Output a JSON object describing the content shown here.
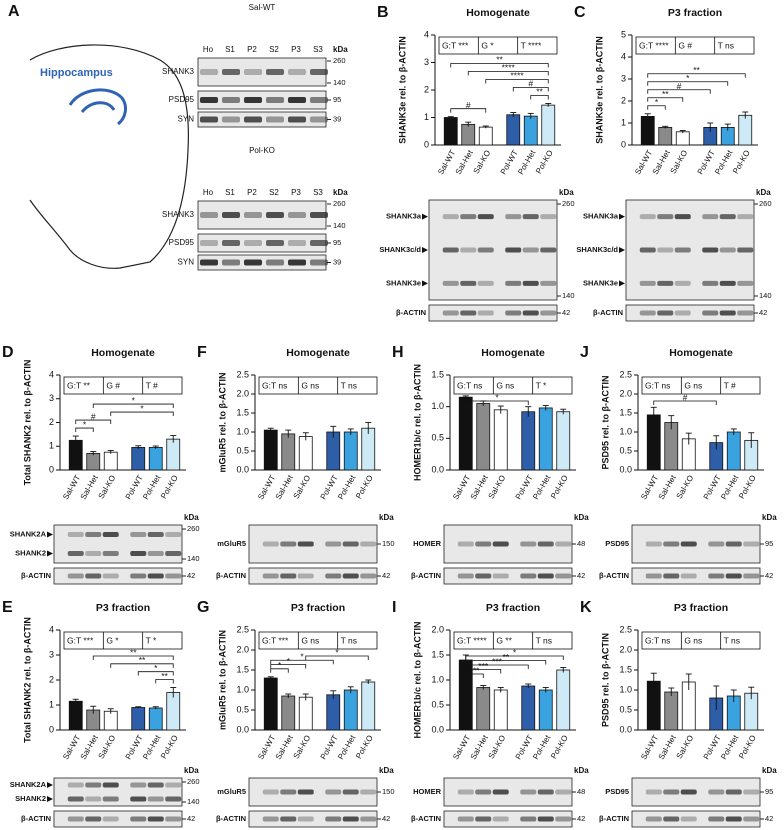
{
  "panel_a": {
    "label": "A",
    "region": "Hippocampus",
    "blots": [
      {
        "group": "Sal-WT",
        "lanes": [
          "Ho",
          "S1",
          "P2",
          "S2",
          "P3",
          "S3"
        ],
        "unit": "kDa",
        "rows": [
          {
            "label": "SHANK3",
            "markers": [
              260,
              140
            ]
          },
          {
            "label": "PSD95",
            "markers": [
              95
            ]
          },
          {
            "label": "SYN",
            "markers": [
              39
            ]
          }
        ]
      },
      {
        "group": "Pol-KO",
        "lanes": [
          "Ho",
          "S1",
          "P2",
          "S2",
          "P3",
          "S3"
        ],
        "unit": "kDa",
        "rows": [
          {
            "label": "SHANK3",
            "markers": [
              260,
              140
            ]
          },
          {
            "label": "PSD95",
            "markers": [
              95
            ]
          },
          {
            "label": "SYN",
            "markers": [
              39
            ]
          }
        ]
      }
    ]
  },
  "chart_data": [
    {
      "type": "bar",
      "panel": "B",
      "title": "Homogenate",
      "y_label": "SHANK3e rel. to β-ACTIN",
      "categories": [
        "Sal-WT",
        "Sal-Het",
        "Sal-KO",
        "Pol-WT",
        "Pol-Het",
        "Pol-KO"
      ],
      "values": [
        1.0,
        0.75,
        0.65,
        1.1,
        1.05,
        1.45
      ],
      "errors": [
        0.03,
        0.08,
        0.04,
        0.08,
        0.1,
        0.06
      ],
      "colors": [
        "#111111",
        "#8a8a8a",
        "#ffffff",
        "#2e5ea8",
        "#3aa3df",
        "#cdeaf6"
      ],
      "ylim": [
        0,
        4
      ],
      "yticks": [
        0,
        1,
        2,
        3,
        4
      ],
      "stats": [
        "G:T ***",
        "G *",
        "T ****"
      ],
      "comparisons": [
        {
          "pair": [
            "Sal-WT",
            "Pol-KO"
          ],
          "label": "**"
        },
        {
          "pair": [
            "Sal-Het",
            "Pol-KO"
          ],
          "label": "****"
        },
        {
          "pair": [
            "Sal-KO",
            "Pol-KO"
          ],
          "label": "****"
        },
        {
          "pair": [
            "Pol-WT",
            "Pol-KO"
          ],
          "label": "#"
        },
        {
          "pair": [
            "Pol-Het",
            "Pol-KO"
          ],
          "label": "**"
        },
        {
          "pair": [
            "Sal-WT",
            "Sal-KO"
          ],
          "label": "#"
        }
      ],
      "blot": {
        "unit": "kDa",
        "rows": [
          {
            "labels": [
              "SHANK3a",
              "SHANK3c/d",
              "SHANK3e"
            ],
            "markers": [
              260,
              140
            ]
          },
          {
            "labels": [
              "β-ACTIN"
            ],
            "markers": [
              42
            ]
          }
        ]
      }
    },
    {
      "type": "bar",
      "panel": "C",
      "title": "P3 fraction",
      "y_label": "SHANK3e rel. to β-ACTIN",
      "categories": [
        "Sal-WT",
        "Sal-Het",
        "Sal-KO",
        "Pol-WT",
        "Pol-Het",
        "Pol-KO"
      ],
      "values": [
        1.3,
        0.8,
        0.6,
        0.8,
        0.8,
        1.35
      ],
      "errors": [
        0.12,
        0.05,
        0.06,
        0.2,
        0.15,
        0.15
      ],
      "colors": [
        "#111111",
        "#8a8a8a",
        "#ffffff",
        "#2e5ea8",
        "#3aa3df",
        "#cdeaf6"
      ],
      "ylim": [
        0,
        5
      ],
      "yticks": [
        0,
        1,
        2,
        3,
        4,
        5
      ],
      "stats": [
        "G:T ****",
        "G #",
        "T ns"
      ],
      "comparisons": [
        {
          "pair": [
            "Sal-WT",
            "Pol-KO"
          ],
          "label": "**"
        },
        {
          "pair": [
            "Sal-WT",
            "Pol-Het"
          ],
          "label": "*"
        },
        {
          "pair": [
            "Sal-WT",
            "Pol-WT"
          ],
          "label": "#"
        },
        {
          "pair": [
            "Sal-WT",
            "Sal-KO"
          ],
          "label": "**"
        },
        {
          "pair": [
            "Sal-WT",
            "Sal-Het"
          ],
          "label": "*"
        }
      ],
      "blot": {
        "unit": "kDa",
        "rows": [
          {
            "labels": [
              "SHANK3a",
              "SHANK3c/d",
              "SHANK3e"
            ],
            "markers": [
              260,
              140
            ]
          },
          {
            "labels": [
              "β-ACTIN"
            ],
            "markers": [
              42
            ]
          }
        ]
      }
    },
    {
      "type": "bar",
      "panel": "D",
      "title": "Homogenate",
      "y_label": "Total SHANK2 rel. to β-ACTIN",
      "categories": [
        "Sal-WT",
        "Sal-Het",
        "Sal-KO",
        "Pol-WT",
        "Pol-Het",
        "Pol-KO"
      ],
      "values": [
        1.25,
        0.7,
        0.75,
        0.95,
        0.95,
        1.3
      ],
      "errors": [
        0.18,
        0.08,
        0.07,
        0.07,
        0.06,
        0.15
      ],
      "colors": [
        "#111111",
        "#8a8a8a",
        "#ffffff",
        "#2e5ea8",
        "#3aa3df",
        "#cdeaf6"
      ],
      "ylim": [
        0,
        4
      ],
      "yticks": [
        0,
        1,
        2,
        3,
        4
      ],
      "stats": [
        "G:T **",
        "G #",
        "T #"
      ],
      "comparisons": [
        {
          "pair": [
            "Sal-Het",
            "Pol-KO"
          ],
          "label": "*"
        },
        {
          "pair": [
            "Sal-KO",
            "Pol-KO"
          ],
          "label": "*"
        },
        {
          "pair": [
            "Sal-WT",
            "Sal-KO"
          ],
          "label": "#"
        },
        {
          "pair": [
            "Sal-WT",
            "Sal-Het"
          ],
          "label": "*"
        }
      ],
      "blot": {
        "unit": "kDa",
        "rows": [
          {
            "labels": [
              "SHANK2A",
              "SHANK2"
            ],
            "markers": [
              260,
              140
            ]
          },
          {
            "labels": [
              "β-ACTIN"
            ],
            "markers": [
              42
            ]
          }
        ]
      }
    },
    {
      "type": "bar",
      "panel": "F",
      "title": "Homogenate",
      "y_label": "mGluR5 rel. to β-ACTIN",
      "categories": [
        "Sal-WT",
        "Sal-Het",
        "Sal-KO",
        "Pol-WT",
        "Pol-Het",
        "Pol-KO"
      ],
      "values": [
        1.05,
        0.95,
        0.88,
        1.0,
        1.0,
        1.1
      ],
      "errors": [
        0.05,
        0.1,
        0.1,
        0.15,
        0.08,
        0.15
      ],
      "colors": [
        "#111111",
        "#8a8a8a",
        "#ffffff",
        "#2e5ea8",
        "#3aa3df",
        "#cdeaf6"
      ],
      "ylim": [
        0,
        2.5
      ],
      "yticks": [
        {
          "value": 0,
          "label": "0.0"
        },
        0.5,
        {
          "value": 1,
          "label": "1.0"
        },
        1.5,
        {
          "value": 2,
          "label": "2.0"
        },
        2.5
      ],
      "stats": [
        "G:T ns",
        "G ns",
        "T ns"
      ],
      "comparisons": [],
      "blot": {
        "unit": "kDa",
        "rows": [
          {
            "labels": [
              "mGluR5"
            ],
            "markers": [
              150
            ]
          },
          {
            "labels": [
              "β-ACTIN"
            ],
            "markers": [
              42
            ]
          }
        ]
      }
    },
    {
      "type": "bar",
      "panel": "H",
      "title": "Homogenate",
      "y_label": "HOMER1b/c rel. to β-ACTIN",
      "categories": [
        "Sal-WT",
        "Sal-Het",
        "Sal-KO",
        "Pol-WT",
        "Pol-Het",
        "Pol-KO"
      ],
      "values": [
        1.15,
        1.05,
        0.95,
        0.92,
        0.98,
        0.92
      ],
      "errors": [
        0.02,
        0.04,
        0.06,
        0.08,
        0.04,
        0.04
      ],
      "colors": [
        "#111111",
        "#8a8a8a",
        "#ffffff",
        "#2e5ea8",
        "#3aa3df",
        "#cdeaf6"
      ],
      "ylim": [
        0,
        1.5
      ],
      "yticks": [
        {
          "value": 0,
          "label": "0.0"
        },
        0.5,
        {
          "value": 1,
          "label": "1.0"
        },
        1.5
      ],
      "stats": [
        "G:T ns",
        "G ns",
        "T *"
      ],
      "comparisons": [
        {
          "pair": [
            "Sal-WT",
            "Pol-WT"
          ],
          "label": "*"
        }
      ],
      "blot": {
        "unit": "kDa",
        "rows": [
          {
            "labels": [
              "HOMER"
            ],
            "markers": [
              48
            ]
          },
          {
            "labels": [
              "β-ACTIN"
            ],
            "markers": [
              42
            ]
          }
        ]
      }
    },
    {
      "type": "bar",
      "panel": "J",
      "title": "Homogenate",
      "y_label": "PSD95 rel. to β-ACTIN",
      "categories": [
        "Sal-WT",
        "Sal-Het",
        "Sal-KO",
        "Pol-WT",
        "Pol-Het",
        "Pol-KO"
      ],
      "values": [
        1.45,
        1.25,
        0.82,
        0.72,
        1.0,
        0.78
      ],
      "errors": [
        0.2,
        0.18,
        0.15,
        0.18,
        0.08,
        0.2
      ],
      "colors": [
        "#111111",
        "#8a8a8a",
        "#ffffff",
        "#2e5ea8",
        "#3aa3df",
        "#cdeaf6"
      ],
      "ylim": [
        0,
        2.5
      ],
      "yticks": [
        {
          "value": 0,
          "label": "0.0"
        },
        0.5,
        {
          "value": 1,
          "label": "1.0"
        },
        1.5,
        {
          "value": 2,
          "label": "2.0"
        },
        2.5
      ],
      "stats": [
        "G:T ns",
        "G ns",
        "T #"
      ],
      "comparisons": [
        {
          "pair": [
            "Sal-WT",
            "Pol-WT"
          ],
          "label": "#"
        }
      ],
      "blot": {
        "unit": "kDa",
        "rows": [
          {
            "labels": [
              "PSD95"
            ],
            "markers": [
              95
            ]
          },
          {
            "labels": [
              "β-ACTIN"
            ],
            "markers": [
              42
            ]
          }
        ]
      }
    },
    {
      "type": "bar",
      "panel": "E",
      "title": "P3 fraction",
      "y_label": "Total SHANK2 rel. to β-ACTIN",
      "categories": [
        "Sal-WT",
        "Sal-Het",
        "Sal-KO",
        "Pol-WT",
        "Pol-Het",
        "Pol-KO"
      ],
      "values": [
        1.15,
        0.8,
        0.75,
        0.9,
        0.88,
        1.5
      ],
      "errors": [
        0.08,
        0.15,
        0.1,
        0.03,
        0.05,
        0.2
      ],
      "colors": [
        "#111111",
        "#8a8a8a",
        "#ffffff",
        "#2e5ea8",
        "#3aa3df",
        "#cdeaf6"
      ],
      "ylim": [
        0,
        4
      ],
      "yticks": [
        0,
        1,
        2,
        3,
        4
      ],
      "stats": [
        "G:T ***",
        "G *",
        "T *"
      ],
      "comparisons": [
        {
          "pair": [
            "Sal-Het",
            "Pol-KO"
          ],
          "label": "**"
        },
        {
          "pair": [
            "Sal-KO",
            "Pol-KO"
          ],
          "label": "**"
        },
        {
          "pair": [
            "Pol-WT",
            "Pol-KO"
          ],
          "label": "*"
        },
        {
          "pair": [
            "Pol-Het",
            "Pol-KO"
          ],
          "label": "**"
        }
      ],
      "blot": {
        "unit": "kDa",
        "rows": [
          {
            "labels": [
              "SHANK2A",
              "SHANK2"
            ],
            "markers": [
              260,
              140
            ]
          },
          {
            "labels": [
              "β-ACTIN"
            ],
            "markers": [
              42
            ]
          }
        ]
      }
    },
    {
      "type": "bar",
      "panel": "G",
      "title": "P3 fraction",
      "y_label": "mGluR5 rel. to β-ACTIN",
      "categories": [
        "Sal-WT",
        "Sal-Het",
        "Sal-KO",
        "Pol-WT",
        "Pol-Het",
        "Pol-KO"
      ],
      "values": [
        1.3,
        0.85,
        0.82,
        0.88,
        1.0,
        1.2
      ],
      "errors": [
        0.03,
        0.05,
        0.08,
        0.1,
        0.08,
        0.05
      ],
      "colors": [
        "#111111",
        "#8a8a8a",
        "#ffffff",
        "#2e5ea8",
        "#3aa3df",
        "#cdeaf6"
      ],
      "ylim": [
        0,
        2.5
      ],
      "yticks": [
        {
          "value": 0,
          "label": "0.0"
        },
        0.5,
        {
          "value": 1,
          "label": "1.0"
        },
        1.5,
        {
          "value": 2,
          "label": "2.0"
        },
        2.5
      ],
      "stats": [
        "G:T ***",
        "G ns",
        "T ns"
      ],
      "comparisons": [
        {
          "pair": [
            "Sal-KO",
            "Pol-KO"
          ],
          "label": "*"
        },
        {
          "pair": [
            "Sal-WT",
            "Pol-WT"
          ],
          "label": "*"
        },
        {
          "pair": [
            "Sal-WT",
            "Sal-KO"
          ],
          "label": "*"
        },
        {
          "pair": [
            "Sal-WT",
            "Sal-Het"
          ],
          "label": "*"
        }
      ],
      "blot": {
        "unit": "kDa",
        "rows": [
          {
            "labels": [
              "mGluR5"
            ],
            "markers": [
              150
            ]
          },
          {
            "labels": [
              "β-ACTIN"
            ],
            "markers": [
              42
            ]
          }
        ]
      }
    },
    {
      "type": "bar",
      "panel": "I",
      "title": "P3 fraction",
      "y_label": "HOMER1b/c rel. to β-ACTIN",
      "categories": [
        "Sal-WT",
        "Sal-Het",
        "Sal-KO",
        "Pol-WT",
        "Pol-Het",
        "Pol-KO"
      ],
      "values": [
        1.4,
        0.85,
        0.8,
        0.88,
        0.8,
        1.2
      ],
      "errors": [
        0.1,
        0.04,
        0.05,
        0.04,
        0.05,
        0.05
      ],
      "colors": [
        "#111111",
        "#8a8a8a",
        "#ffffff",
        "#2e5ea8",
        "#3aa3df",
        "#cdeaf6"
      ],
      "ylim": [
        0,
        2
      ],
      "yticks": [
        {
          "value": 0,
          "label": "0.0"
        },
        0.5,
        {
          "value": 1,
          "label": "1.0"
        },
        1.5,
        {
          "value": 2,
          "label": "2.0"
        }
      ],
      "stats": [
        "G:T ****",
        "G **",
        "T ns"
      ],
      "comparisons": [
        {
          "pair": [
            "Sal-WT",
            "Pol-KO"
          ],
          "label": "*"
        },
        {
          "pair": [
            "Sal-WT",
            "Pol-Het"
          ],
          "label": "**"
        },
        {
          "pair": [
            "Sal-WT",
            "Pol-WT"
          ],
          "label": "***"
        },
        {
          "pair": [
            "Sal-WT",
            "Sal-KO"
          ],
          "label": "***"
        },
        {
          "pair": [
            "Sal-WT",
            "Sal-Het"
          ],
          "label": "***"
        }
      ],
      "blot": {
        "unit": "kDa",
        "rows": [
          {
            "labels": [
              "HOMER"
            ],
            "markers": [
              48
            ]
          },
          {
            "labels": [
              "β-ACTIN"
            ],
            "markers": [
              42
            ]
          }
        ]
      }
    },
    {
      "type": "bar",
      "panel": "K",
      "title": "P3 fraction",
      "y_label": "PSD95 rel. to β-ACTIN",
      "categories": [
        "Sal-WT",
        "Sal-Het",
        "Sal-KO",
        "Pol-WT",
        "Pol-Het",
        "Pol-KO"
      ],
      "values": [
        1.22,
        0.95,
        1.2,
        0.8,
        0.85,
        0.92
      ],
      "errors": [
        0.2,
        0.1,
        0.2,
        0.3,
        0.15,
        0.15
      ],
      "colors": [
        "#111111",
        "#8a8a8a",
        "#ffffff",
        "#2e5ea8",
        "#3aa3df",
        "#cdeaf6"
      ],
      "ylim": [
        0,
        2.5
      ],
      "yticks": [
        {
          "value": 0,
          "label": "0.0"
        },
        0.5,
        {
          "value": 1,
          "label": "1.0"
        },
        1.5,
        {
          "value": 2,
          "label": "2.0"
        },
        2.5
      ],
      "stats": [
        "G:T ns",
        "G ns",
        "T ns"
      ],
      "comparisons": [],
      "blot": {
        "unit": "kDa",
        "rows": [
          {
            "labels": [
              "PSD95"
            ],
            "markers": [
              95
            ]
          },
          {
            "labels": [
              "β-ACTIN"
            ],
            "markers": [
              42
            ]
          }
        ]
      }
    }
  ]
}
